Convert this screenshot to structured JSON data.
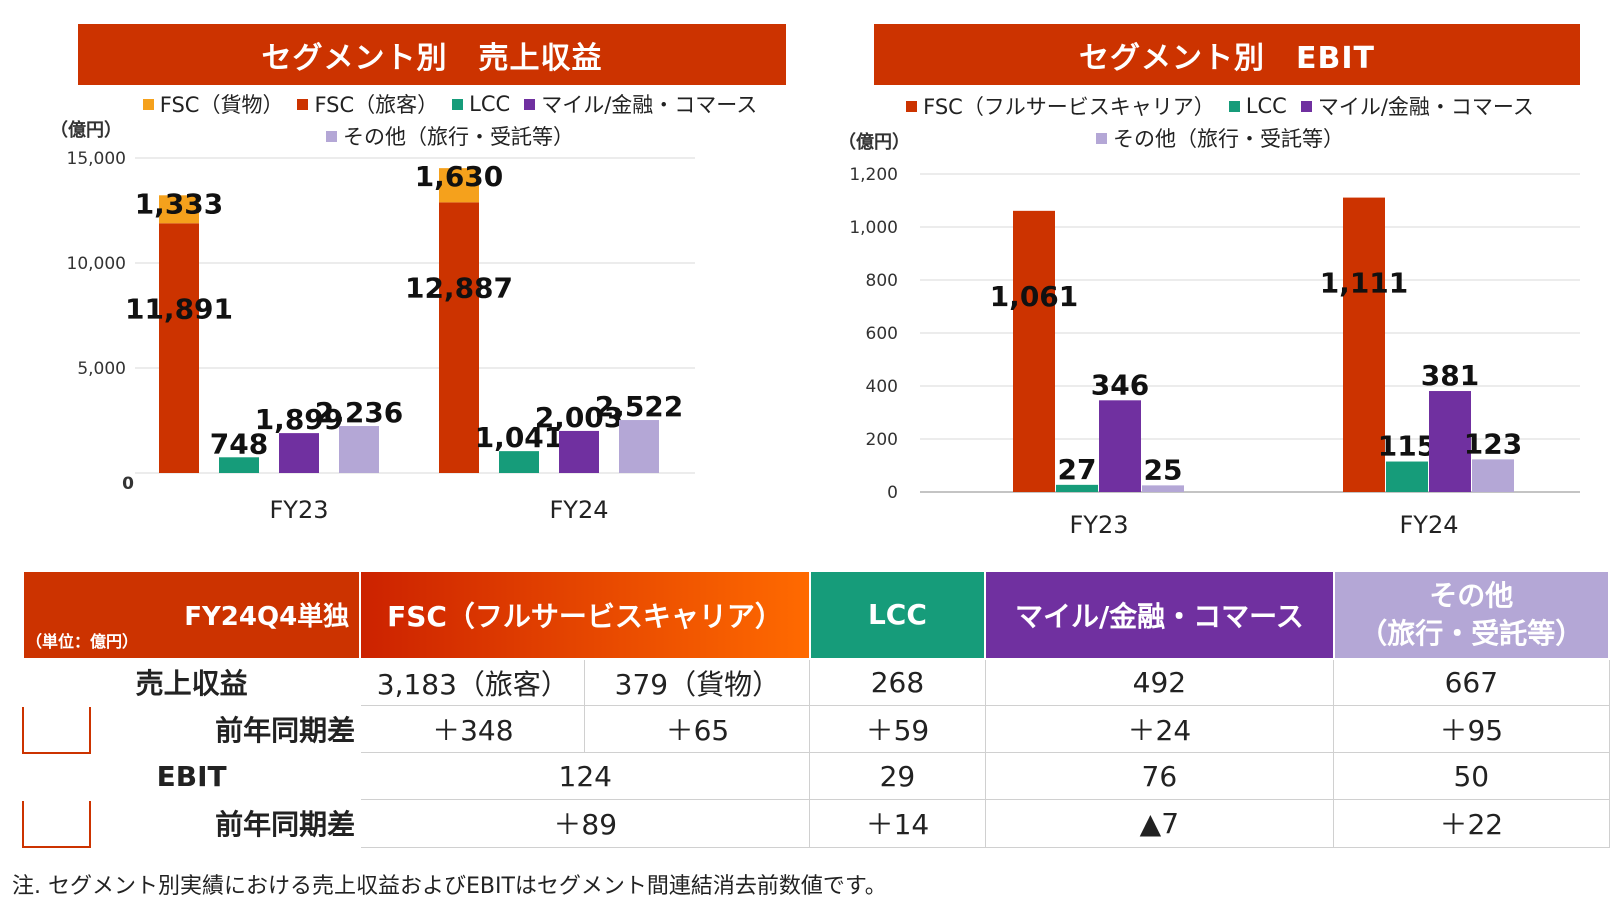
{
  "left_title": "セグメント別　売上収益",
  "right_title": "セグメント別　EBIT",
  "left_legend": [
    {
      "label": "FSC（貨物）",
      "color": "#f5a11c"
    },
    {
      "label": "FSC（旅客）",
      "color": "#cc3300"
    },
    {
      "label": "LCC",
      "color": "#169c7a"
    },
    {
      "label": "マイル/金融・コマース",
      "color": "#7030a0"
    },
    {
      "label": "その他（旅行・受託等）",
      "color": "#b4a7d6"
    }
  ],
  "right_legend": [
    {
      "label": "FSC（フルサービスキャリア）",
      "color": "#cc3300"
    },
    {
      "label": "LCC",
      "color": "#169c7a"
    },
    {
      "label": "マイル/金融・コマース",
      "color": "#7030a0"
    },
    {
      "label": "その他（旅行・受託等）",
      "color": "#b4a7d6"
    }
  ],
  "unit_label": "（億円）",
  "chart_data": [
    {
      "type": "bar",
      "title": "セグメント別　売上収益",
      "ylabel": "（億円）",
      "ylim": [
        0,
        15000
      ],
      "yticks": [
        "0",
        "5,000",
        "10,000",
        "15,000"
      ],
      "categories": [
        "FY23",
        "FY24"
      ],
      "series": [
        {
          "name": "FSC（旅客）",
          "values": [
            11891,
            12887
          ],
          "labels": [
            "11,891",
            "12,887"
          ],
          "stack": "FSC"
        },
        {
          "name": "FSC（貨物）",
          "values": [
            1333,
            1630
          ],
          "labels": [
            "1,333",
            "1,630"
          ],
          "stack": "FSC"
        },
        {
          "name": "LCC",
          "values": [
            748,
            1041
          ],
          "labels": [
            "748",
            "1,041"
          ]
        },
        {
          "name": "マイル/金融・コマース",
          "values": [
            1899,
            2003
          ],
          "labels": [
            "1,899",
            "2,003"
          ]
        },
        {
          "name": "その他（旅行・受託等）",
          "values": [
            2236,
            2522
          ],
          "labels": [
            "2,236",
            "2,522"
          ]
        }
      ]
    },
    {
      "type": "bar",
      "title": "セグメント別　EBIT",
      "ylabel": "（億円）",
      "ylim": [
        0,
        1200
      ],
      "yticks": [
        "0",
        "200",
        "400",
        "600",
        "800",
        "1,000",
        "1,200"
      ],
      "categories": [
        "FY23",
        "FY24"
      ],
      "series": [
        {
          "name": "FSC（フルサービスキャリア）",
          "values": [
            1061,
            1111
          ],
          "labels": [
            "1,061",
            "1,111"
          ]
        },
        {
          "name": "LCC",
          "values": [
            27,
            115
          ],
          "labels": [
            "27",
            "115"
          ]
        },
        {
          "name": "マイル/金融・コマース",
          "values": [
            346,
            381
          ],
          "labels": [
            "346",
            "381"
          ]
        },
        {
          "name": "その他（旅行・受託等）",
          "values": [
            25,
            123
          ],
          "labels": [
            "25",
            "123"
          ]
        }
      ]
    }
  ],
  "table": {
    "corner_title": "FY24Q4単独",
    "corner_unit": "（単位：億円）",
    "headers": {
      "fsc": "FSC（フルサービスキャリア）",
      "lcc": "LCC",
      "mile": "マイル/金融・コマース",
      "other_line1": "その他",
      "other_line2": "（旅行・受託等）"
    },
    "header_colors": {
      "corner": "#cc3300",
      "fsc_from": "#cc2200",
      "fsc_to": "#ff6a00",
      "lcc": "#169c7a",
      "mile": "#7030a0",
      "other": "#b4a7d6"
    },
    "rows": {
      "revenue_label": "売上収益",
      "revenue": {
        "fsc_passenger": "3,183（旅客）",
        "fsc_cargo": "379（貨物）",
        "lcc": "268",
        "mile": "492",
        "other": "667"
      },
      "revenue_yoy_label": "前年同期差",
      "revenue_yoy": {
        "fsc_passenger": "＋348",
        "fsc_cargo": "＋65",
        "lcc": "＋59",
        "mile": "＋24",
        "other": "＋95"
      },
      "ebit_label": "EBIT",
      "ebit": {
        "fsc": "124",
        "lcc": "29",
        "mile": "76",
        "other": "50"
      },
      "ebit_yoy_label": "前年同期差",
      "ebit_yoy": {
        "fsc": "＋89",
        "lcc": "＋14",
        "mile": "▲7",
        "other": "＋22"
      }
    }
  },
  "note": "注. セグメント別実績における売上収益およびEBITはセグメント間連結消去前数値です。"
}
